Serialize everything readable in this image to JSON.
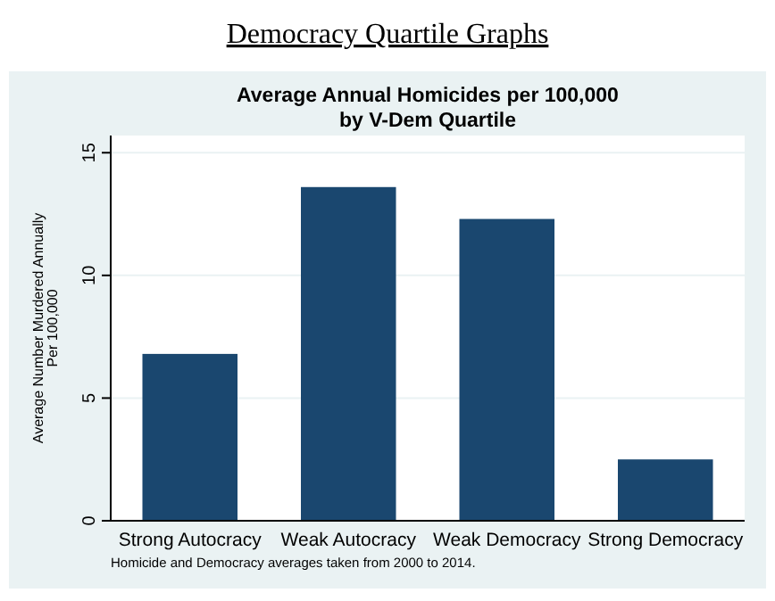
{
  "chart_data": {
    "type": "bar",
    "title": "Democracy Quartile Graphs",
    "subtitle": "Average Annual Homicides per 100,000\nby V-Dem Quartile",
    "ylabel": "Average Number Murdered Annually\nPer 100,000",
    "categories": [
      "Strong Autocracy",
      "Weak Autocracy",
      "Weak Democracy",
      "Strong Democracy"
    ],
    "values": [
      6.8,
      13.6,
      12.3,
      2.5
    ],
    "color": "#1a476f",
    "ylim": [
      0,
      15.7
    ],
    "yticks": [
      0,
      5,
      10,
      15
    ],
    "grid": "y",
    "annotations": [
      "Homicide and Democracy averages taken from 2000 to 2014."
    ]
  }
}
